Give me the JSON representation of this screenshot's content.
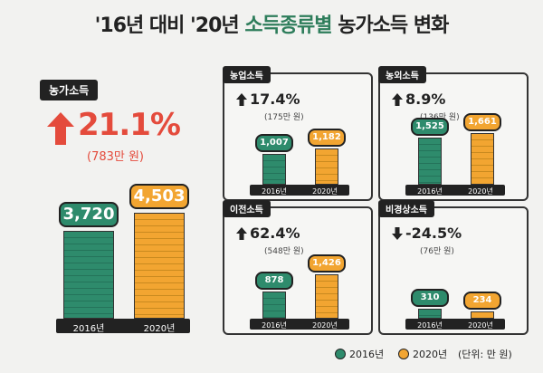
{
  "title": {
    "part1": "'16년 대비 '20년",
    "part2": "소득종류별",
    "part3": "농가소득 변화"
  },
  "main": {
    "label": "농가소득",
    "pct": "21.1%",
    "sub": "(783만 원)"
  },
  "panels": [
    {
      "label": "농업소득",
      "pct": "17.4%",
      "sub": "(175만 원)",
      "dir": "up",
      "v2016": "1,007",
      "v2020": "1,182"
    },
    {
      "label": "농외소득",
      "pct": "8.9%",
      "sub": "(136만 원)",
      "dir": "up",
      "v2016": "1,525",
      "v2020": "1,661"
    },
    {
      "label": "이전소득",
      "pct": "62.4%",
      "sub": "(548만 원)",
      "dir": "up",
      "v2016": "878",
      "v2020": "1,426"
    },
    {
      "label": "비경상소득",
      "pct": "-24.5%",
      "sub": "(76만 원)",
      "dir": "down",
      "v2016": "310",
      "v2020": "234"
    }
  ],
  "legend": {
    "y1": "2016년",
    "y2": "2020년",
    "unit": "(단위: 만 원)"
  },
  "colors": {
    "y2016": "#2e8b6c",
    "y2020": "#f2a531",
    "up": "#e44b3c"
  },
  "chart_data": [
    {
      "type": "bar",
      "title": "농가소득",
      "categories": [
        "2016년",
        "2020년"
      ],
      "values": [
        3720,
        4503
      ]
    },
    {
      "type": "bar",
      "title": "농업소득",
      "categories": [
        "2016년",
        "2020년"
      ],
      "values": [
        1007,
        1182
      ]
    },
    {
      "type": "bar",
      "title": "농외소득",
      "categories": [
        "2016년",
        "2020년"
      ],
      "values": [
        1525,
        1661
      ]
    },
    {
      "type": "bar",
      "title": "이전소득",
      "categories": [
        "2016년",
        "2020년"
      ],
      "values": [
        878,
        1426
      ]
    },
    {
      "type": "bar",
      "title": "비경상소득",
      "categories": [
        "2016년",
        "2020년"
      ],
      "values": [
        310,
        234
      ]
    }
  ]
}
